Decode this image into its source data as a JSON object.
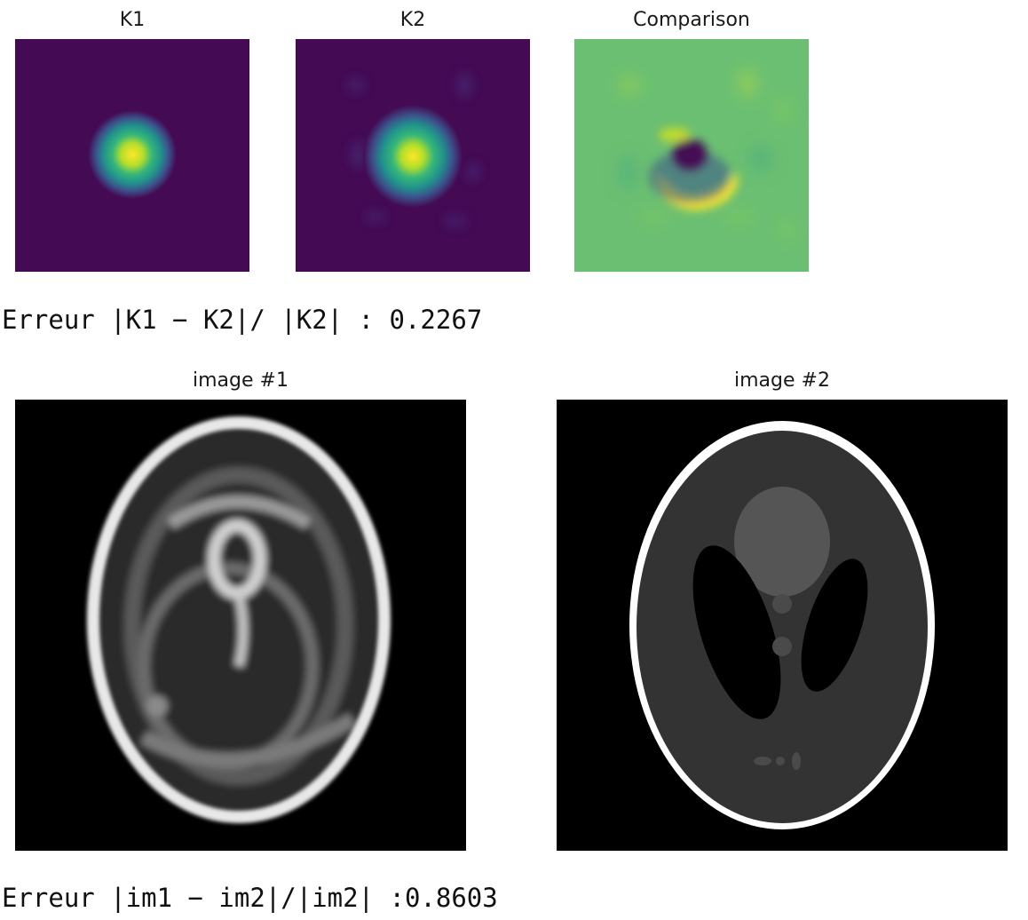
{
  "top_row": {
    "panels": [
      {
        "title": "K1"
      },
      {
        "title": "K2"
      },
      {
        "title": "Comparison"
      }
    ]
  },
  "output1": "Erreur |K1 − K2|/ |K2| : 0.2267",
  "bottom_row": {
    "panels": [
      {
        "title": "image #1"
      },
      {
        "title": "image #2"
      }
    ]
  },
  "output2": "Erreur |im1 − im2|/|im2| :0.8603",
  "colors": {
    "viridis_dark": "#440a54",
    "viridis_mid": "#21918c",
    "viridis_yellow": "#fde725",
    "comparison_bg": "#6bbf72",
    "black": "#000000",
    "white": "#ffffff"
  }
}
